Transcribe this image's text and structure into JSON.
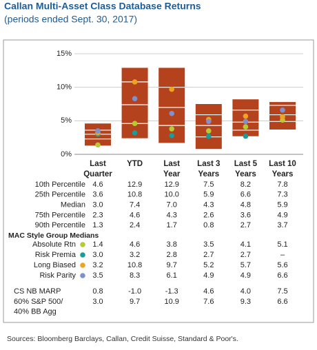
{
  "chart_data": {
    "type": "floating-bar",
    "title": "Callan Multi-Asset Class Database Returns",
    "subtitle": "(periods ended Sept. 30, 2017)",
    "categories": [
      "Last Quarter",
      "YTD",
      "Last Year",
      "Last 3 Years",
      "Last 5 Years",
      "Last 10 Years"
    ],
    "ylim": [
      0,
      15
    ],
    "yticks": [
      {
        "value": 0,
        "label": "0%"
      },
      {
        "value": 5,
        "label": "5%"
      },
      {
        "value": 10,
        "label": "10%"
      },
      {
        "value": 15,
        "label": "15%"
      }
    ],
    "grid": true,
    "bar_color": "#b3421d",
    "percentiles": [
      {
        "name": "10th Percentile",
        "values": [
          4.6,
          12.9,
          12.9,
          7.5,
          8.2,
          7.8
        ],
        "value_labels": [
          "4.6",
          "12.9",
          "12.9",
          "7.5",
          "8.2",
          "7.8"
        ]
      },
      {
        "name": "25th Percentile",
        "values": [
          3.6,
          10.8,
          10.0,
          5.9,
          6.6,
          7.3
        ],
        "value_labels": [
          "3.6",
          "10.8",
          "10.0",
          "5.9",
          "6.6",
          "7.3"
        ]
      },
      {
        "name": "Median",
        "values": [
          3.0,
          7.4,
          7.0,
          4.3,
          4.8,
          5.9
        ],
        "value_labels": [
          "3.0",
          "7.4",
          "7.0",
          "4.3",
          "4.8",
          "5.9"
        ]
      },
      {
        "name": "75th Percentile",
        "values": [
          2.3,
          4.6,
          4.3,
          2.6,
          3.6,
          4.9
        ],
        "value_labels": [
          "2.3",
          "4.6",
          "4.3",
          "2.6",
          "3.6",
          "4.9"
        ]
      },
      {
        "name": "90th Percentile",
        "values": [
          1.3,
          2.4,
          1.7,
          0.8,
          2.7,
          3.7
        ],
        "value_labels": [
          "1.3",
          "2.4",
          "1.7",
          "0.8",
          "2.7",
          "3.7"
        ]
      }
    ],
    "group_heading": "MAC Style Group Medians",
    "series": [
      {
        "name": "Absolute Rtn",
        "color": "#b8c935",
        "values": [
          1.4,
          4.6,
          3.8,
          3.5,
          4.1,
          5.1
        ],
        "value_labels": [
          "1.4",
          "4.6",
          "3.8",
          "3.5",
          "4.1",
          "5.1"
        ]
      },
      {
        "name": "Risk Premia",
        "color": "#1a9c9a",
        "values": [
          3.0,
          3.2,
          2.8,
          2.7,
          2.7,
          null
        ],
        "value_labels": [
          "3.0",
          "3.2",
          "2.8",
          "2.7",
          "2.7",
          "–"
        ]
      },
      {
        "name": "Long Biased",
        "color": "#eea323",
        "values": [
          3.2,
          10.8,
          9.7,
          5.2,
          5.7,
          5.6
        ],
        "value_labels": [
          "3.2",
          "10.8",
          "9.7",
          "5.2",
          "5.7",
          "5.6"
        ]
      },
      {
        "name": "Risk Parity",
        "color": "#7f90cc",
        "values": [
          3.5,
          8.3,
          6.1,
          4.9,
          4.9,
          6.6
        ],
        "value_labels": [
          "3.5",
          "8.3",
          "6.1",
          "4.9",
          "4.9",
          "6.6"
        ]
      }
    ],
    "table_rows": [
      {
        "label": [
          "CS NB MARP"
        ],
        "values": [
          0.8,
          -1.0,
          -1.3,
          4.6,
          4.0,
          7.5
        ],
        "value_labels": [
          "0.8",
          "-1.0",
          "-1.3",
          "4.6",
          "4.0",
          "7.5"
        ]
      },
      {
        "label": [
          "60% S&P 500/",
          "40% BB Agg"
        ],
        "values": [
          3.0,
          9.7,
          10.9,
          7.6,
          9.3,
          6.6
        ],
        "value_labels": [
          "3.0",
          "9.7",
          "10.9",
          "7.6",
          "9.3",
          "6.6"
        ]
      }
    ],
    "source": "Sources: Bloomberg Barclays, Callan, Credit Suisse, Standard & Poor's."
  }
}
